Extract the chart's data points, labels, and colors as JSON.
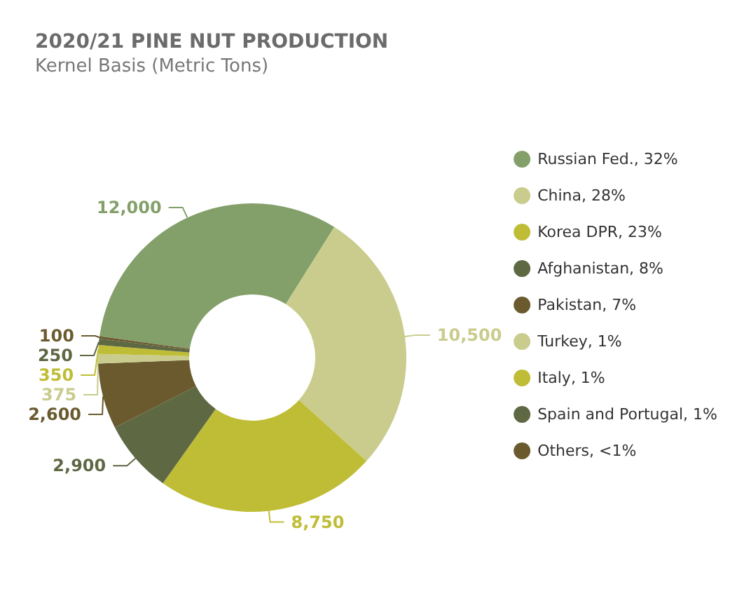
{
  "chart_data": {
    "type": "donut",
    "title": "2020/21 PINE NUT PRODUCTION",
    "subtitle": "Kernel Basis (Metric Tons)",
    "categories": [
      "Russian Fed., 32%",
      "China, 28%",
      "Korea DPR, 23%",
      "Afghanistan, 8%",
      "Pakistan, 7%",
      "Turkey, 1%",
      "Italy, 1%",
      "Spain and Portugal, 1%",
      "Others, <1%"
    ],
    "values": [
      12000,
      10500,
      8750,
      2900,
      2600,
      375,
      350,
      250,
      100
    ],
    "value_labels": [
      "12,000",
      "10,500",
      "8,750",
      "2,900",
      "2,600",
      "375",
      "350",
      "250",
      "100"
    ],
    "colors": [
      "#84a06a",
      "#c9cc8c",
      "#bfbd36",
      "#5e6843",
      "#6a5a2e",
      "#c9cc8c",
      "#bfbd36",
      "#5e6843",
      "#6a5a2e"
    ],
    "legend": "right"
  }
}
